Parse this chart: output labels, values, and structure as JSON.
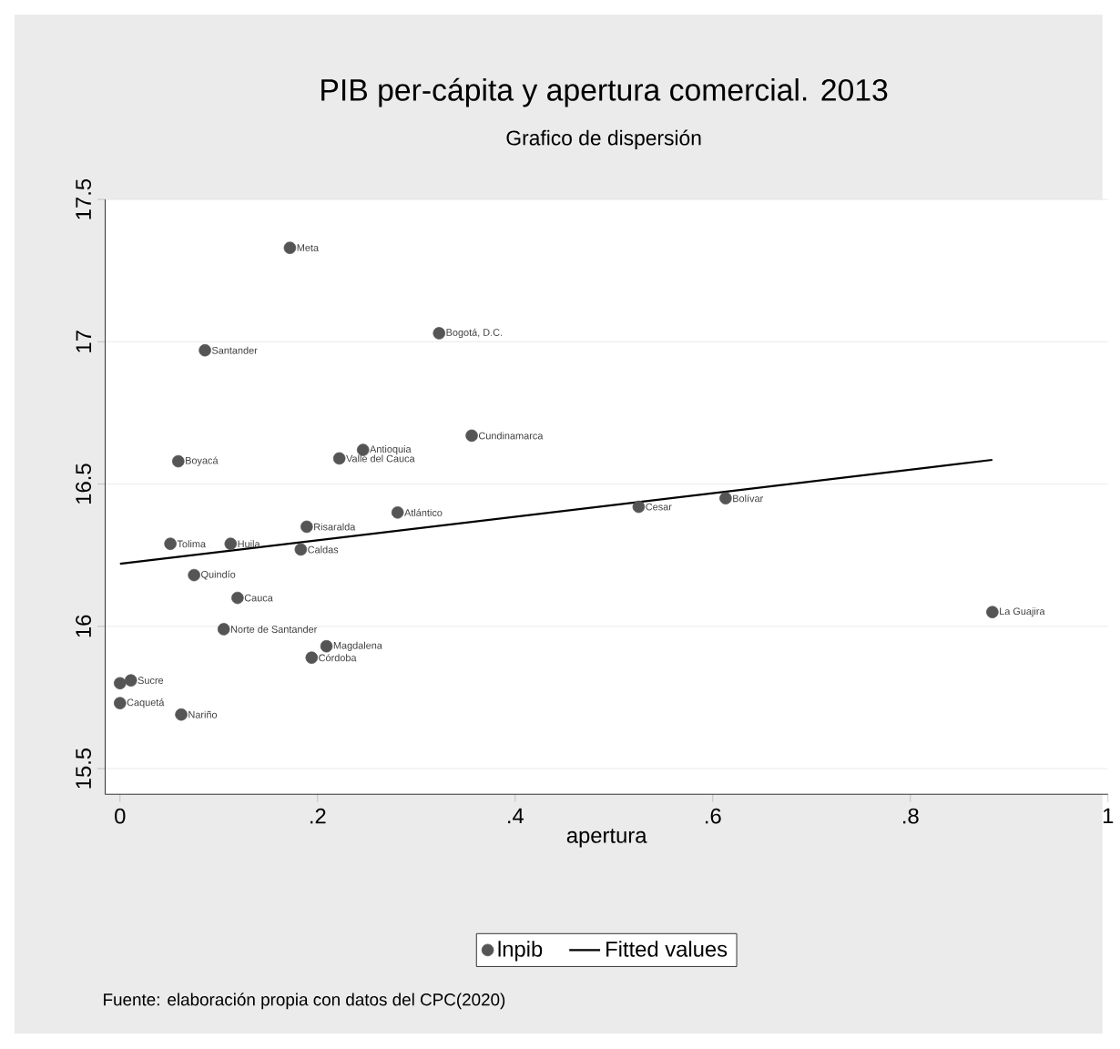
{
  "chart_data": {
    "type": "scatter",
    "title": "PIB per-cápita y apertura comercial. 2013",
    "subtitle": "Grafico de dispersión",
    "xlabel": "apertura",
    "xlim": [
      -0.015,
      1.0
    ],
    "ylim": [
      15.41,
      17.5
    ],
    "xticks": [
      0,
      {
        "value": 0.2,
        "label": ".2"
      },
      {
        "value": 0.4,
        "label": ".4"
      },
      {
        "value": 0.6,
        "label": ".6"
      },
      {
        "value": 0.8,
        "label": ".8"
      },
      1
    ],
    "yticks": [
      15.5,
      16,
      16.5,
      17,
      17.5
    ],
    "grid": "y",
    "legend": "bottom",
    "series": [
      {
        "name": "lnpib",
        "marker": "circle",
        "color": "#555555",
        "x": [
          0.172,
          0.323,
          0.086,
          0.356,
          0.246,
          0.222,
          0.059,
          0.281,
          0.189,
          0.051,
          0.112,
          0.183,
          0.075,
          0.119,
          0.105,
          0.209,
          0.194,
          0.0,
          0.011,
          0.0,
          0.062,
          0.525,
          0.613,
          0.883
        ],
        "values": [
          17.33,
          17.03,
          16.97,
          16.67,
          16.62,
          16.59,
          16.58,
          16.4,
          16.35,
          16.29,
          16.29,
          16.27,
          16.18,
          16.1,
          15.99,
          15.93,
          15.89,
          15.8,
          15.81,
          15.73,
          15.69,
          16.42,
          16.45,
          16.05
        ]
      },
      {
        "name": "Fitted values",
        "type": "line",
        "color": "#000000",
        "line_style": "solid",
        "x": [
          0.0,
          0.883
        ],
        "values": [
          16.22,
          16.585
        ]
      }
    ],
    "annotations": [
      {
        "text": "Meta",
        "x": 0.172,
        "y": 17.33
      },
      {
        "text": "Bogotá, D.C.",
        "x": 0.323,
        "y": 17.03
      },
      {
        "text": "Santander",
        "x": 0.086,
        "y": 16.97
      },
      {
        "text": "Cundinamarca",
        "x": 0.356,
        "y": 16.67
      },
      {
        "text": "Antioquia",
        "x": 0.246,
        "y": 16.62
      },
      {
        "text": "Valle del Cauca",
        "x": 0.222,
        "y": 16.59
      },
      {
        "text": "Boyacá",
        "x": 0.059,
        "y": 16.58
      },
      {
        "text": "Atlántico",
        "x": 0.281,
        "y": 16.4
      },
      {
        "text": "Risaralda",
        "x": 0.189,
        "y": 16.35
      },
      {
        "text": "Tolima",
        "x": 0.051,
        "y": 16.29
      },
      {
        "text": "Huila",
        "x": 0.112,
        "y": 16.29
      },
      {
        "text": "Caldas",
        "x": 0.183,
        "y": 16.27
      },
      {
        "text": "Quindío",
        "x": 0.075,
        "y": 16.18
      },
      {
        "text": "Cauca",
        "x": 0.119,
        "y": 16.1
      },
      {
        "text": "Norte de Santander",
        "x": 0.105,
        "y": 15.99
      },
      {
        "text": "Magdalena",
        "x": 0.209,
        "y": 15.93
      },
      {
        "text": "Córdoba",
        "x": 0.194,
        "y": 15.89
      },
      {
        "text": "Sucre",
        "x": 0.011,
        "y": 15.81
      },
      {
        "text": "Caquetá",
        "x": 0.0,
        "y": 15.73
      },
      {
        "text": "Nariño",
        "x": 0.062,
        "y": 15.69
      },
      {
        "text": "Cesar",
        "x": 0.525,
        "y": 16.42
      },
      {
        "text": "Bolívar",
        "x": 0.613,
        "y": 16.45
      },
      {
        "text": "La Guajira",
        "x": 0.883,
        "y": 16.05
      },
      "Fuente: elaboración propia con datos del CPC(2020)"
    ]
  }
}
